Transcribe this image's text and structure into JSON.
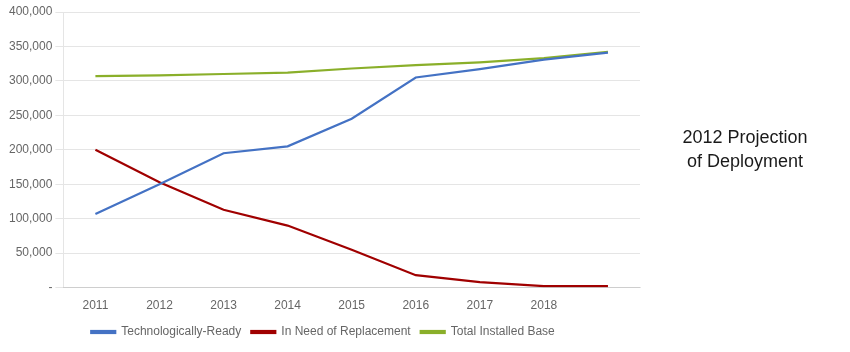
{
  "chart_data": {
    "type": "line",
    "x": [
      2011,
      2012,
      2013,
      2014,
      2015,
      2016,
      2017,
      2018,
      2019
    ],
    "series": [
      {
        "name": "Technologically-Ready",
        "color": "#4472C4",
        "values": [
          107000,
          150000,
          195000,
          205000,
          245000,
          305000,
          317000,
          331000,
          341000
        ]
      },
      {
        "name": "In Need of Replacement",
        "color": "#A00000",
        "values": [
          200000,
          153000,
          113000,
          90000,
          55000,
          18000,
          8000,
          2000,
          2000
        ]
      },
      {
        "name": "Total Installed Base",
        "color": "#8AAF2A",
        "values": [
          307000,
          308000,
          310000,
          312000,
          318000,
          323000,
          327000,
          333000,
          342000
        ]
      }
    ],
    "xlim": [
      2010.5,
      2019.5
    ],
    "xticks": [
      2011,
      2012,
      2013,
      2014,
      2015,
      2016,
      2017,
      2018
    ],
    "ylim": [
      0,
      400000
    ],
    "yticks": [
      {
        "value": 0,
        "label": "-"
      },
      {
        "value": 50000,
        "label": "50,000"
      },
      {
        "value": 100000,
        "label": "100,000"
      },
      {
        "value": 150000,
        "label": "150,000"
      },
      {
        "value": 200000,
        "label": "200,000"
      },
      {
        "value": 250000,
        "label": "250,000"
      },
      {
        "value": 300000,
        "label": "300,000"
      },
      {
        "value": 350000,
        "label": "350,000"
      },
      {
        "value": 400000,
        "label": "400,000"
      }
    ],
    "annotations": [
      "2012 Projection\nof Deployment"
    ],
    "grid": "y",
    "legend": "bottom",
    "marker": "none"
  }
}
